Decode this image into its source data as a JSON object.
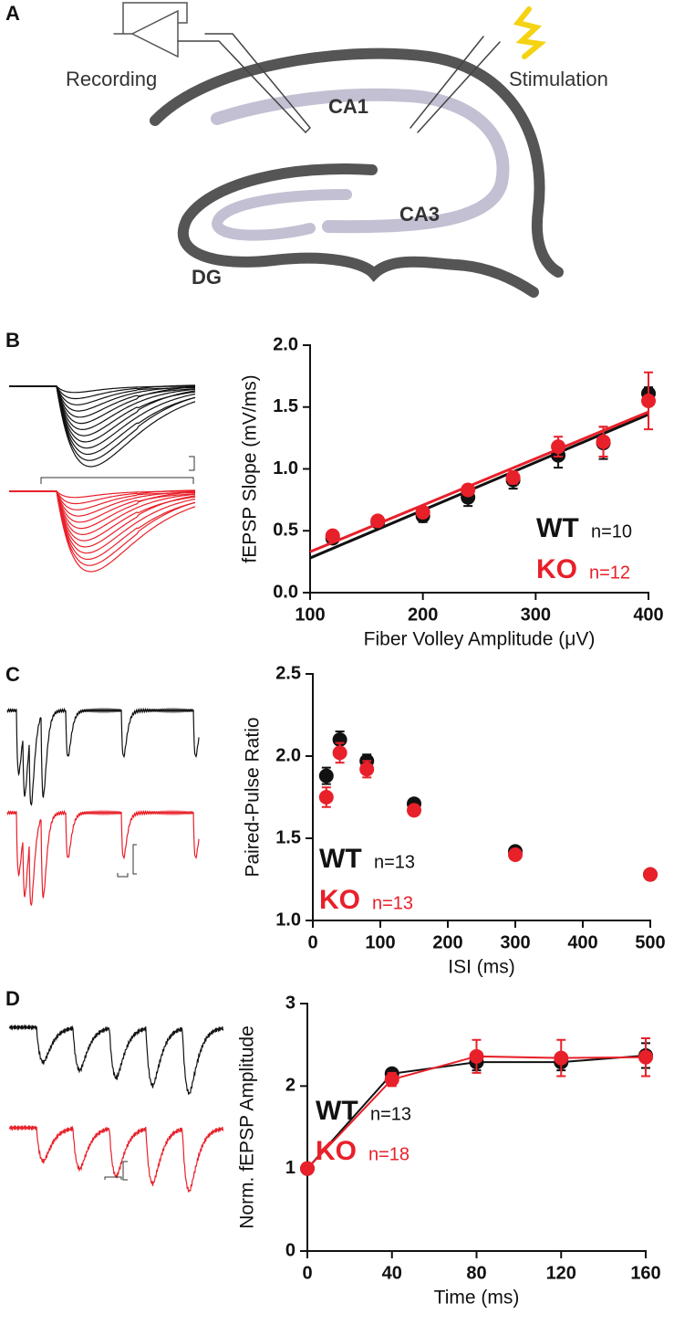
{
  "panel_labels": [
    "A",
    "B",
    "C",
    "D"
  ],
  "diagram": {
    "recording": "Recording",
    "stimulation": "Stimulation",
    "ca1": "CA1",
    "ca3": "CA3",
    "dg": "DG"
  },
  "chart_data": [
    {
      "type": "scatter",
      "xlabel": "Fiber Volley Amplitude (μV)",
      "ylabel": "fEPSP Slope (mV/ms)",
      "x": [
        120,
        160,
        200,
        240,
        280,
        320,
        360,
        400
      ],
      "xlim": [
        100,
        400
      ],
      "xticks": [
        100,
        200,
        300,
        400
      ],
      "ylim": [
        0,
        2
      ],
      "yticks": [
        {
          "value": 0,
          "label": "0.0"
        },
        0.5,
        {
          "value": 1,
          "label": "1.0"
        },
        1.5,
        {
          "value": 2,
          "label": "2.0"
        }
      ],
      "series": [
        {
          "name": "WT",
          "n_label": "n=10",
          "color": "#111111",
          "values": [
            0.44,
            0.57,
            0.62,
            0.77,
            0.91,
            1.11,
            1.21,
            1.61
          ],
          "errors": [
            0.03,
            0.03,
            0.05,
            0.07,
            0.07,
            0.1,
            0.13,
            0.05
          ],
          "fit": {
            "x": [
              100,
              400
            ],
            "values": [
              0.28,
              1.44
            ]
          }
        },
        {
          "name": "KO",
          "n_label": "n=12",
          "color": "#e8202a",
          "values": [
            0.46,
            0.58,
            0.65,
            0.83,
            0.93,
            1.18,
            1.22,
            1.55
          ],
          "errors": [
            0.03,
            0.03,
            0.03,
            0.03,
            0.05,
            0.08,
            0.12,
            0.23
          ],
          "fit": {
            "x": [
              100,
              400
            ],
            "values": [
              0.33,
              1.46
            ]
          }
        }
      ]
    },
    {
      "type": "scatter",
      "xlabel": "ISI (ms)",
      "ylabel": "Paired-Pulse Ratio",
      "x": [
        20,
        40,
        80,
        150,
        300,
        500
      ],
      "xlim": [
        0,
        500
      ],
      "xticks": [
        0,
        100,
        200,
        300,
        400,
        500
      ],
      "ylim": [
        1,
        2.5
      ],
      "yticks": [
        {
          "value": 1,
          "label": "1.0"
        },
        1.5,
        {
          "value": 2,
          "label": "2.0"
        },
        2.5
      ],
      "series": [
        {
          "name": "WT",
          "n_label": "n=13",
          "color": "#111111",
          "values": [
            1.88,
            2.1,
            1.97,
            1.71,
            1.42,
            1.28
          ],
          "errors": [
            0.05,
            0.05,
            0.04,
            0.01,
            0.01,
            0
          ]
        },
        {
          "name": "KO",
          "n_label": "n=13",
          "color": "#e8202a",
          "values": [
            1.75,
            2.02,
            1.92,
            1.67,
            1.4,
            1.28
          ],
          "errors": [
            0.06,
            0.06,
            0.05,
            0.02,
            0.01,
            0
          ]
        }
      ]
    },
    {
      "type": "line",
      "xlabel": "Time (ms)",
      "ylabel": "Norm. fEPSP Amplitude",
      "x": [
        0,
        40,
        80,
        120,
        160
      ],
      "xlim": [
        0,
        160
      ],
      "xticks": [
        0,
        40,
        80,
        120,
        160
      ],
      "ylim": [
        0,
        3
      ],
      "yticks": [
        0,
        1,
        2,
        3
      ],
      "series": [
        {
          "name": "WT",
          "n_label": "n=13",
          "color": "#111111",
          "values": [
            1,
            2.15,
            2.29,
            2.29,
            2.37
          ],
          "errors": [
            0,
            0.05,
            0.1,
            0.1,
            0.15
          ]
        },
        {
          "name": "KO",
          "n_label": "n=18",
          "color": "#e8202a",
          "values": [
            1,
            2.08,
            2.36,
            2.34,
            2.35
          ],
          "errors": [
            0,
            0.08,
            0.2,
            0.22,
            0.23
          ]
        }
      ]
    }
  ]
}
